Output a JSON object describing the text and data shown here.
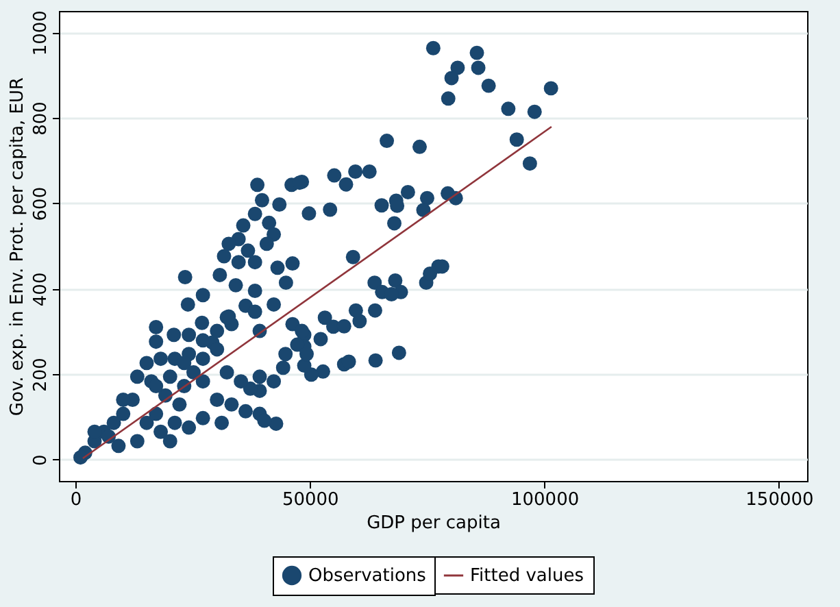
{
  "chart_data": {
    "type": "scatter",
    "xlabel": "GDP per capita",
    "ylabel": "Gov. exp. in Env. Prot. per capita, EUR",
    "xlim": [
      -3500,
      156000
    ],
    "ylim": [
      -50,
      1050
    ],
    "xticks": [
      0,
      50000,
      100000,
      150000
    ],
    "yticks": [
      0,
      200,
      400,
      600,
      800,
      1000
    ],
    "grid": "y",
    "legend": "bottom",
    "series": [
      {
        "name": "Observations",
        "marker": "circle",
        "color": "#1a476f",
        "x": [
          76300,
          85600,
          81500,
          85900,
          80200,
          88100,
          79500,
          101400,
          92300,
          97900,
          73400,
          94100,
          96900,
          66400,
          48300,
          55200,
          57700,
          59700,
          62700,
          49800,
          54300,
          65300,
          68400,
          68600,
          70900,
          75000,
          79400,
          81100,
          74200,
          68000,
          59200,
          63800,
          65400,
          68200,
          69400,
          67400,
          74800,
          75600,
          77400,
          78200,
          53200,
          59800,
          63900,
          60600,
          55000,
          57300,
          52300,
          48800,
          48800,
          69000,
          64000,
          57300,
          58300,
          52800,
          50300,
          48800,
          38800,
          46100,
          47800,
          39800,
          43500,
          38300,
          41300,
          35800,
          42300,
          34800,
          32700,
          40800,
          36800,
          31700,
          34800,
          38300,
          43100,
          46300,
          30800,
          23400,
          34200,
          38300,
          44900,
          27200,
          24000,
          36300,
          38300,
          42300,
          27000,
          32700,
          17200,
          21000,
          24200,
          17200,
          29200,
          33300,
          39300,
          46300,
          48300,
          47300,
          44800,
          49300,
          44300,
          42300,
          39300,
          39300,
          37300,
          35300,
          32300,
          30200,
          27200,
          24200,
          21200,
          18200,
          15200,
          13200,
          16200,
          20200,
          23200,
          27200,
          30200,
          33300,
          36300,
          39300,
          42800,
          40300,
          12200,
          10200,
          8200,
          6100,
          4100,
          2100,
          1100,
          15200,
          18200,
          13200,
          9200,
          21200,
          24200,
          27200,
          22200,
          19200,
          17200,
          31200,
          20200,
          4100,
          7100,
          23200,
          27200,
          30200,
          32300,
          25200,
          17200,
          10200
        ],
        "values": [
          963,
          952,
          917,
          917,
          893,
          875,
          845,
          869,
          821,
          814,
          732,
          749,
          693,
          746,
          650,
          665,
          644,
          674,
          674,
          576,
          585,
          595,
          606,
          594,
          626,
          612,
          623,
          612,
          584,
          553,
          474,
          414,
          392,
          419,
          392,
          387,
          414,
          435,
          452,
          452,
          332,
          349,
          349,
          324,
          311,
          312,
          282,
          292,
          265,
          250,
          232,
          223,
          229,
          206,
          199,
          220,
          643,
          643,
          648,
          607,
          597,
          575,
          554,
          548,
          527,
          516,
          505,
          505,
          489,
          476,
          462,
          462,
          449,
          459,
          432,
          427,
          408,
          395,
          414,
          385,
          363,
          360,
          346,
          363,
          320,
          335,
          310,
          292,
          292,
          276,
          274,
          317,
          301,
          317,
          301,
          269,
          247,
          247,
          215,
          183,
          194,
          161,
          166,
          183,
          204,
          258,
          236,
          247,
          236,
          236,
          226,
          194,
          183,
          194,
          172,
          183,
          140,
          129,
          113,
          107,
          84,
          91,
          140,
          107,
          86,
          65,
          43,
          16,
          5,
          86,
          65,
          43,
          32,
          86,
          75,
          97,
          129,
          150,
          107,
          86,
          43,
          65,
          54,
          226,
          279,
          301,
          333,
          204,
          172,
          140
        ]
      },
      {
        "name": "Fitted values",
        "type": "line",
        "color": "#90353b",
        "x": [
          1600,
          101500
        ],
        "values": [
          3,
          779
        ]
      }
    ]
  }
}
